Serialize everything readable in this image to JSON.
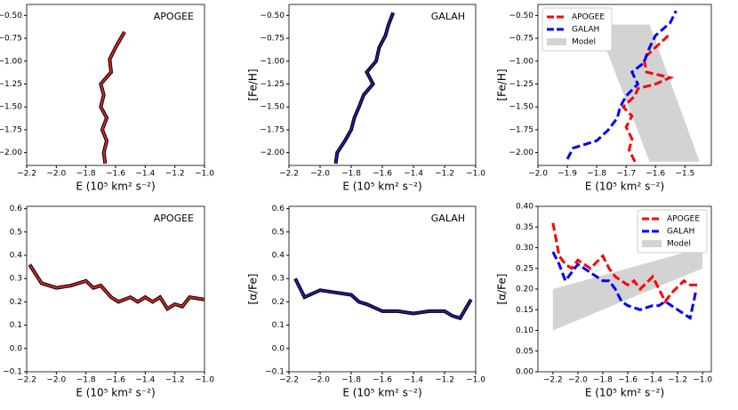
{
  "chart_data": [
    {
      "type": "line",
      "annotation": "APOGEE",
      "xlabel": "E (10⁵ km² s⁻²)",
      "ylabel": "[Fe/H]",
      "xlim": [
        -2.2,
        -1.0
      ],
      "ylim": [
        -2.14,
        -0.38
      ],
      "xticks": [
        {
          "value": -2.2,
          "label": "−2.2"
        },
        {
          "value": -2.0,
          "label": "−2.0"
        },
        {
          "value": -1.8,
          "label": "−1.8"
        },
        {
          "value": -1.6,
          "label": "−1.6"
        },
        {
          "value": -1.4,
          "label": "−1.4"
        },
        {
          "value": -1.2,
          "label": "−1.2"
        },
        {
          "value": -1.0,
          "label": "−1.0"
        }
      ],
      "yticks": [
        {
          "value": -2.0,
          "label": "−2.00"
        },
        {
          "value": -1.75,
          "label": "−1.75"
        },
        {
          "value": -1.5,
          "label": "−1.50"
        },
        {
          "value": -1.25,
          "label": "−1.25"
        },
        {
          "value": -1.0,
          "label": "−1.00"
        },
        {
          "value": -0.75,
          "label": "−0.75"
        },
        {
          "value": -0.5,
          "label": "−0.50"
        }
      ],
      "series": [
        {
          "color": "#d62728",
          "edge_color": "#000000",
          "linestyle": "solid",
          "x": [
            -1.67,
            -1.68,
            -1.66,
            -1.69,
            -1.66,
            -1.7,
            -1.68,
            -1.7,
            -1.63,
            -1.64,
            -1.6,
            -1.54
          ],
          "values": [
            -2.12,
            -2.0,
            -1.87,
            -1.75,
            -1.62,
            -1.5,
            -1.37,
            -1.25,
            -1.12,
            -0.98,
            -0.85,
            -0.68
          ]
        }
      ]
    },
    {
      "type": "line",
      "annotation": "GALAH",
      "xlabel": "E (10⁵ km² s⁻²)",
      "ylabel": "[Fe/H]",
      "xlim": [
        -2.2,
        -1.0
      ],
      "ylim": [
        -2.14,
        -0.38
      ],
      "xticks": [
        {
          "value": -2.2,
          "label": "−2.2"
        },
        {
          "value": -2.0,
          "label": "−2.0"
        },
        {
          "value": -1.8,
          "label": "−1.8"
        },
        {
          "value": -1.6,
          "label": "−1.6"
        },
        {
          "value": -1.4,
          "label": "−1.4"
        },
        {
          "value": -1.2,
          "label": "−1.2"
        },
        {
          "value": -1.0,
          "label": "−1.0"
        }
      ],
      "yticks": [
        {
          "value": -2.0,
          "label": "−2.00"
        },
        {
          "value": -1.75,
          "label": "−1.75"
        },
        {
          "value": -1.5,
          "label": "−1.50"
        },
        {
          "value": -1.25,
          "label": "−1.25"
        },
        {
          "value": -1.0,
          "label": "−1.00"
        },
        {
          "value": -0.75,
          "label": "−0.75"
        },
        {
          "value": -0.5,
          "label": "−0.50"
        }
      ],
      "series": [
        {
          "color": "#1f1f9f",
          "edge_color": "#000000",
          "linestyle": "solid",
          "x": [
            -1.9,
            -1.89,
            -1.84,
            -1.8,
            -1.78,
            -1.75,
            -1.72,
            -1.66,
            -1.7,
            -1.64,
            -1.62,
            -1.58,
            -1.56,
            -1.53
          ],
          "values": [
            -2.12,
            -2.0,
            -1.87,
            -1.75,
            -1.62,
            -1.5,
            -1.37,
            -1.25,
            -1.12,
            -1.0,
            -0.85,
            -0.72,
            -0.6,
            -0.47
          ]
        }
      ]
    },
    {
      "type": "line",
      "xlabel": "E (10⁵ km² s⁻²)",
      "ylabel": "[Fe/H]",
      "legend": "upper left",
      "xlim": [
        -2.0,
        -1.41
      ],
      "ylim": [
        -2.14,
        -0.38
      ],
      "xticks": [
        {
          "value": -2.0,
          "label": "−2.0"
        },
        {
          "value": -1.9,
          "label": "−1.9"
        },
        {
          "value": -1.8,
          "label": "−1.8"
        },
        {
          "value": -1.7,
          "label": "−1.7"
        },
        {
          "value": -1.6,
          "label": "−1.6"
        },
        {
          "value": -1.5,
          "label": "−1.5"
        }
      ],
      "yticks": [
        {
          "value": -2.0,
          "label": "−2.00"
        },
        {
          "value": -1.75,
          "label": "−1.75"
        },
        {
          "value": -1.5,
          "label": "−1.50"
        },
        {
          "value": -1.25,
          "label": "−1.25"
        },
        {
          "value": -1.0,
          "label": "−1.00"
        },
        {
          "value": -0.75,
          "label": "−0.75"
        },
        {
          "value": -0.5,
          "label": "−0.50"
        }
      ],
      "series": [
        {
          "name": "APOGEE",
          "color": "#ff0000",
          "linestyle": "dashed",
          "x": [
            -1.67,
            -1.69,
            -1.68,
            -1.7,
            -1.68,
            -1.71,
            -1.67,
            -1.66,
            -1.6,
            -1.55,
            -1.63,
            -1.64,
            -1.6,
            -1.55
          ],
          "values": [
            -2.1,
            -1.97,
            -1.85,
            -1.72,
            -1.6,
            -1.5,
            -1.38,
            -1.3,
            -1.25,
            -1.18,
            -1.12,
            -0.97,
            -0.85,
            -0.7
          ]
        },
        {
          "name": "GALAH",
          "color": "#0000ff",
          "linestyle": "dashed",
          "x": [
            -1.9,
            -1.88,
            -1.8,
            -1.76,
            -1.73,
            -1.72,
            -1.7,
            -1.66,
            -1.68,
            -1.64,
            -1.62,
            -1.6,
            -1.55,
            -1.53
          ],
          "values": [
            -2.07,
            -1.95,
            -1.87,
            -1.75,
            -1.62,
            -1.5,
            -1.38,
            -1.25,
            -1.12,
            -1.02,
            -0.85,
            -0.72,
            -0.58,
            -0.45
          ]
        }
      ],
      "band": {
        "name": "Model",
        "color": "#d3d3d3",
        "x": [
          -1.8,
          -1.62,
          -1.45,
          -1.62
        ],
        "values": [
          -0.6,
          -0.6,
          -2.1,
          -2.1
        ]
      }
    },
    {
      "type": "line",
      "annotation": "APOGEE",
      "xlabel": "E (10⁵ km² s⁻²)",
      "ylabel": "[α/Fe]",
      "xlim": [
        -2.2,
        -1.0
      ],
      "ylim": [
        -0.1,
        0.61
      ],
      "xticks": [
        {
          "value": -2.2,
          "label": "−2.2"
        },
        {
          "value": -2.0,
          "label": "−2.0"
        },
        {
          "value": -1.8,
          "label": "−1.8"
        },
        {
          "value": -1.6,
          "label": "−1.6"
        },
        {
          "value": -1.4,
          "label": "−1.4"
        },
        {
          "value": -1.2,
          "label": "−1.2"
        },
        {
          "value": -1.0,
          "label": "−1.0"
        }
      ],
      "yticks": [
        {
          "value": -0.1,
          "label": "−0.1"
        },
        {
          "value": 0.0,
          "label": "0.0"
        },
        0.1,
        0.2,
        0.3,
        0.4,
        0.5,
        0.6
      ],
      "series": [
        {
          "color": "#d62728",
          "edge_color": "#000000",
          "linestyle": "solid",
          "x": [
            -2.18,
            -2.1,
            -2.0,
            -1.9,
            -1.8,
            -1.75,
            -1.7,
            -1.63,
            -1.58,
            -1.5,
            -1.45,
            -1.4,
            -1.35,
            -1.3,
            -1.25,
            -1.2,
            -1.15,
            -1.1,
            -1.0
          ],
          "values": [
            0.36,
            0.28,
            0.26,
            0.27,
            0.29,
            0.26,
            0.27,
            0.22,
            0.2,
            0.22,
            0.2,
            0.22,
            0.2,
            0.22,
            0.17,
            0.19,
            0.18,
            0.22,
            0.21
          ]
        }
      ]
    },
    {
      "type": "line",
      "annotation": "GALAH",
      "xlabel": "E (10⁵ km² s⁻²)",
      "ylabel": "[α/Fe]",
      "xlim": [
        -2.2,
        -1.0
      ],
      "ylim": [
        -0.1,
        0.61
      ],
      "xticks": [
        {
          "value": -2.2,
          "label": "−2.2"
        },
        {
          "value": -2.0,
          "label": "−2.0"
        },
        {
          "value": -1.8,
          "label": "−1.8"
        },
        {
          "value": -1.6,
          "label": "−1.6"
        },
        {
          "value": -1.4,
          "label": "−1.4"
        },
        {
          "value": -1.2,
          "label": "−1.2"
        },
        {
          "value": -1.0,
          "label": "−1.0"
        }
      ],
      "yticks": [
        {
          "value": -0.1,
          "label": "−0.1"
        },
        {
          "value": 0.0,
          "label": "0.0"
        },
        0.1,
        0.2,
        0.3,
        0.4,
        0.5,
        0.6
      ],
      "series": [
        {
          "color": "#1f1f9f",
          "edge_color": "#000000",
          "linestyle": "solid",
          "x": [
            -2.16,
            -2.1,
            -2.0,
            -1.9,
            -1.8,
            -1.75,
            -1.7,
            -1.6,
            -1.5,
            -1.4,
            -1.3,
            -1.2,
            -1.15,
            -1.1,
            -1.03
          ],
          "values": [
            0.3,
            0.22,
            0.25,
            0.24,
            0.23,
            0.2,
            0.19,
            0.16,
            0.16,
            0.15,
            0.16,
            0.16,
            0.14,
            0.13,
            0.21
          ]
        }
      ]
    },
    {
      "type": "line",
      "xlabel": "E (10⁵ km² s⁻²)",
      "ylabel": "[α/Fe]",
      "legend": "upper right",
      "xlim": [
        -2.32,
        -0.93
      ],
      "ylim": [
        0.0,
        0.4
      ],
      "xticks": [
        {
          "value": -2.2,
          "label": "−2.2"
        },
        {
          "value": -2.0,
          "label": "−2.0"
        },
        {
          "value": -1.8,
          "label": "−1.8"
        },
        {
          "value": -1.6,
          "label": "−1.6"
        },
        {
          "value": -1.4,
          "label": "−1.4"
        },
        {
          "value": -1.2,
          "label": "−1.2"
        },
        {
          "value": -1.0,
          "label": "−1.0"
        }
      ],
      "yticks": [
        {
          "value": 0.0,
          "label": "0.00"
        },
        {
          "value": 0.05,
          "label": "0.05"
        },
        {
          "value": 0.1,
          "label": "0.10"
        },
        {
          "value": 0.15,
          "label": "0.15"
        },
        {
          "value": 0.2,
          "label": "0.20"
        },
        {
          "value": 0.25,
          "label": "0.25"
        },
        {
          "value": 0.3,
          "label": "0.30"
        },
        {
          "value": 0.35,
          "label": "0.35"
        },
        {
          "value": 0.4,
          "label": "0.40"
        }
      ],
      "series": [
        {
          "name": "APOGEE",
          "color": "#ff0000",
          "linestyle": "dashed",
          "x": [
            -2.2,
            -2.15,
            -2.1,
            -2.05,
            -2.0,
            -1.9,
            -1.8,
            -1.75,
            -1.7,
            -1.6,
            -1.55,
            -1.5,
            -1.4,
            -1.35,
            -1.3,
            -1.25,
            -1.15,
            -1.1,
            -1.03
          ],
          "values": [
            0.36,
            0.28,
            0.26,
            0.25,
            0.27,
            0.25,
            0.28,
            0.25,
            0.23,
            0.21,
            0.22,
            0.2,
            0.23,
            0.2,
            0.17,
            0.19,
            0.22,
            0.21,
            0.21
          ]
        },
        {
          "name": "GALAH",
          "color": "#0000ff",
          "linestyle": "dashed",
          "x": [
            -2.2,
            -2.15,
            -2.1,
            -2.05,
            -2.0,
            -1.9,
            -1.8,
            -1.75,
            -1.7,
            -1.65,
            -1.6,
            -1.5,
            -1.4,
            -1.35,
            -1.3,
            -1.2,
            -1.15,
            -1.1,
            -1.05
          ],
          "values": [
            0.29,
            0.26,
            0.22,
            0.24,
            0.26,
            0.24,
            0.22,
            0.22,
            0.2,
            0.17,
            0.16,
            0.15,
            0.16,
            0.16,
            0.17,
            0.15,
            0.14,
            0.13,
            0.2
          ]
        }
      ],
      "band": {
        "name": "Model",
        "color": "#d3d3d3",
        "x": [
          -2.2,
          -1.0,
          -1.0,
          -2.2
        ],
        "values": [
          0.2,
          0.3,
          0.25,
          0.1
        ]
      }
    }
  ]
}
